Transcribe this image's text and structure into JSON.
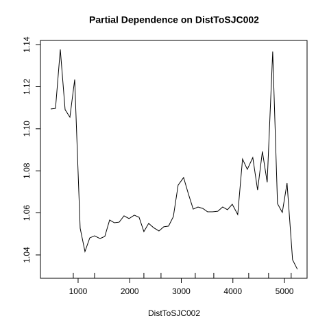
{
  "chart_data": {
    "type": "line",
    "title": "Partial Dependence on DistToSJC002",
    "x_label": "DistToSJC002",
    "x": [
      469,
      562,
      655,
      748,
      841,
      934,
      1040,
      1133,
      1226,
      1319,
      1425,
      1518,
      1611,
      1704,
      1797,
      1890,
      1987,
      2089,
      2182,
      2275,
      2368,
      2461,
      2567,
      2660,
      2753,
      2846,
      2939,
      3045,
      3138,
      3231,
      3324,
      3417,
      3510,
      3603,
      3709,
      3802,
      3895,
      3988,
      4094,
      4187,
      4280,
      4386,
      4479,
      4572,
      4665,
      4772,
      4865,
      4958,
      5050,
      5157,
      5250
    ],
    "series": [
      {
        "color": "#000000",
        "values": [
          1.1094,
          1.1097,
          1.1377,
          1.1091,
          1.1055,
          1.1234,
          1.0527,
          1.0416,
          1.0481,
          1.0491,
          1.0478,
          1.0488,
          1.0566,
          1.0553,
          1.0556,
          1.0586,
          1.0573,
          1.0589,
          1.0579,
          1.0511,
          1.055,
          1.053,
          1.0514,
          1.0534,
          1.0537,
          1.0582,
          1.0732,
          1.0768,
          1.069,
          1.0618,
          1.0628,
          1.0621,
          1.0605,
          1.0605,
          1.0608,
          1.0628,
          1.0615,
          1.0641,
          1.0592,
          1.0856,
          1.0807,
          1.0863,
          1.0709,
          1.0892,
          1.0745,
          1.1367,
          1.0644,
          1.0602,
          1.0742,
          1.0377,
          1.0332
        ]
      }
    ],
    "rug": [
      907,
      1319,
      2275,
      2607,
      3271,
      3630,
      4307,
      4692,
      5130
    ],
    "xlim": [
      270,
      5438
    ],
    "ylim": [
      1.0289,
      1.142
    ],
    "xticks": [
      1000,
      2000,
      3000,
      4000,
      5000
    ],
    "yticks": [
      1.04,
      1.06,
      {
        "value": 1.08,
        "label": "1.08"
      },
      {
        "value": 1.1,
        "label": "1.10"
      },
      1.12,
      1.14
    ]
  }
}
